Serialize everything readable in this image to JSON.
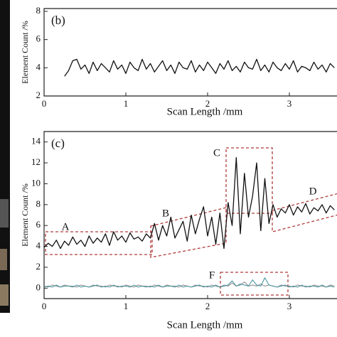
{
  "chart_data": [
    {
      "type": "line",
      "title": "(b)",
      "xlabel": "Scan  Length /mm",
      "ylabel": "Element Count /%",
      "xlim": [
        0,
        3.6
      ],
      "ylim": [
        2,
        8.2
      ],
      "xticks": [
        0,
        1,
        2,
        3
      ],
      "yticks": [
        2,
        4,
        6,
        8
      ],
      "x": [
        0.25,
        0.3,
        0.35,
        0.4,
        0.45,
        0.5,
        0.55,
        0.6,
        0.65,
        0.7,
        0.75,
        0.8,
        0.85,
        0.9,
        0.95,
        1,
        1.05,
        1.1,
        1.15,
        1.2,
        1.25,
        1.3,
        1.35,
        1.4,
        1.45,
        1.5,
        1.55,
        1.6,
        1.65,
        1.7,
        1.75,
        1.8,
        1.85,
        1.9,
        1.95,
        2,
        2.05,
        2.1,
        2.15,
        2.2,
        2.25,
        2.3,
        2.35,
        2.4,
        2.45,
        2.5,
        2.55,
        2.6,
        2.65,
        2.7,
        2.75,
        2.8,
        2.85,
        2.9,
        2.95,
        3,
        3.05,
        3.1,
        3.15,
        3.2,
        3.25,
        3.3,
        3.35,
        3.4,
        3.45,
        3.5,
        3.55
      ],
      "series": [
        {
          "color": "#111111",
          "values": [
            3.4,
            3.8,
            4.5,
            4.6,
            3.9,
            4.2,
            3.6,
            4.4,
            3.8,
            4.3,
            4.0,
            3.7,
            4.5,
            3.9,
            4.2,
            3.6,
            4.4,
            4.0,
            3.8,
            4.6,
            3.9,
            4.3,
            3.7,
            4.1,
            4.5,
            3.8,
            4.2,
            3.6,
            4.4,
            4.0,
            3.9,
            4.5,
            3.7,
            4.2,
            3.8,
            4.4,
            4.0,
            3.6,
            4.3,
            3.9,
            4.5,
            3.8,
            4.1,
            3.7,
            4.4,
            4.0,
            3.9,
            4.6,
            3.8,
            4.2,
            3.7,
            4.4,
            4.0,
            3.8,
            4.3,
            3.9,
            4.5,
            3.7,
            4.1,
            4.0,
            3.8,
            4.4,
            3.9,
            4.2,
            3.7,
            4.3,
            4.0
          ]
        }
      ]
    },
    {
      "type": "line",
      "title": "(c)",
      "xlabel": "Scan  Length /mm",
      "ylabel": "Element Count /%",
      "xlim": [
        0,
        3.6
      ],
      "ylim": [
        -1,
        15
      ],
      "xticks": [
        0,
        1,
        2,
        3
      ],
      "yticks": [
        0,
        2,
        4,
        6,
        8,
        10,
        12,
        14
      ],
      "annotations": [
        "A",
        "B",
        "C",
        "D",
        "F"
      ],
      "x": [
        0,
        0.05,
        0.1,
        0.15,
        0.2,
        0.25,
        0.3,
        0.35,
        0.4,
        0.45,
        0.5,
        0.55,
        0.6,
        0.65,
        0.7,
        0.75,
        0.8,
        0.85,
        0.9,
        0.95,
        1,
        1.05,
        1.1,
        1.15,
        1.2,
        1.25,
        1.3,
        1.35,
        1.4,
        1.45,
        1.5,
        1.55,
        1.6,
        1.65,
        1.7,
        1.75,
        1.8,
        1.85,
        1.9,
        1.95,
        2,
        2.05,
        2.1,
        2.15,
        2.2,
        2.25,
        2.3,
        2.35,
        2.4,
        2.45,
        2.5,
        2.55,
        2.6,
        2.65,
        2.7,
        2.75,
        2.8,
        2.85,
        2.9,
        2.95,
        3,
        3.05,
        3.1,
        3.15,
        3.2,
        3.25,
        3.3,
        3.35,
        3.4,
        3.45,
        3.5,
        3.55
      ],
      "series": [
        {
          "color": "#888888",
          "values": [
            0.2,
            0.1,
            0.3,
            0.2,
            0.1,
            0.3,
            0.2,
            0.2,
            0.1,
            0.3,
            0.2,
            0.1,
            0.3,
            0.2,
            0.2,
            0.1,
            0.3,
            0.2,
            0.2,
            0.1,
            0.3,
            0.2,
            0.1,
            0.3,
            0.2,
            0.2,
            0.1,
            0.3,
            0.2,
            0.1,
            0.3,
            0.2,
            0.2,
            0.1,
            0.3,
            0.2,
            0.1,
            0.3,
            0.2,
            0.2,
            0.1,
            0.3,
            0.2,
            0.1,
            0.3,
            0.2,
            0.5,
            0.2,
            0.3,
            0.6,
            0.2,
            0.3,
            0.2,
            0.4,
            0.2,
            0.3,
            0.2,
            0.1,
            0.3,
            0.2,
            0.2,
            0.1,
            0.3,
            0.2,
            0.2,
            0.1,
            0.3,
            0.2,
            0.2,
            0.1,
            0.3,
            0.2
          ]
        },
        {
          "color": "#3f8f9a",
          "values": [
            0.1,
            0.2,
            0.1,
            0.3,
            0.1,
            0.2,
            0.2,
            0.1,
            0.3,
            0.1,
            0.2,
            0.1,
            0.2,
            0.3,
            0.1,
            0.2,
            0.1,
            0.3,
            0.1,
            0.2,
            0.2,
            0.1,
            0.3,
            0.1,
            0.2,
            0.1,
            0.2,
            0.1,
            0.3,
            0.1,
            0.2,
            0.2,
            0.1,
            0.3,
            0.1,
            0.2,
            0.1,
            0.2,
            0.3,
            0.1,
            0.2,
            0.1,
            0.3,
            0.1,
            0.2,
            0.3,
            0.7,
            0.2,
            0.4,
            0.3,
            0.2,
            0.8,
            0.3,
            0.2,
            1.0,
            0.3,
            0.2,
            0.1,
            0.2,
            0.3,
            0.1,
            0.2,
            0.1,
            0.3,
            0.1,
            0.2,
            0.2,
            0.1,
            0.3,
            0.1,
            0.2,
            0.1
          ]
        },
        {
          "color": "#111111",
          "values": [
            3.9,
            4.3,
            4.0,
            4.6,
            3.8,
            4.5,
            4.1,
            4.9,
            4.2,
            4.6,
            4.0,
            5.0,
            4.3,
            4.8,
            4.4,
            5.2,
            4.1,
            5.4,
            4.6,
            5.0,
            4.4,
            5.3,
            4.7,
            4.9,
            4.5,
            5.2,
            4.8,
            6.2,
            4.6,
            6.0,
            5.0,
            6.8,
            4.8,
            5.6,
            6.4,
            4.5,
            7.0,
            5.2,
            6.6,
            7.8,
            5.0,
            6.8,
            4.2,
            7.2,
            3.8,
            8.2,
            6.0,
            12.5,
            5.2,
            11.0,
            6.8,
            8.8,
            12.0,
            5.5,
            10.5,
            6.2,
            8.0,
            6.8,
            7.6,
            7.2,
            8.0,
            7.0,
            7.8,
            7.3,
            8.1,
            7.1,
            7.7,
            7.4,
            8.0,
            7.2,
            7.9,
            7.5
          ]
        }
      ]
    }
  ]
}
